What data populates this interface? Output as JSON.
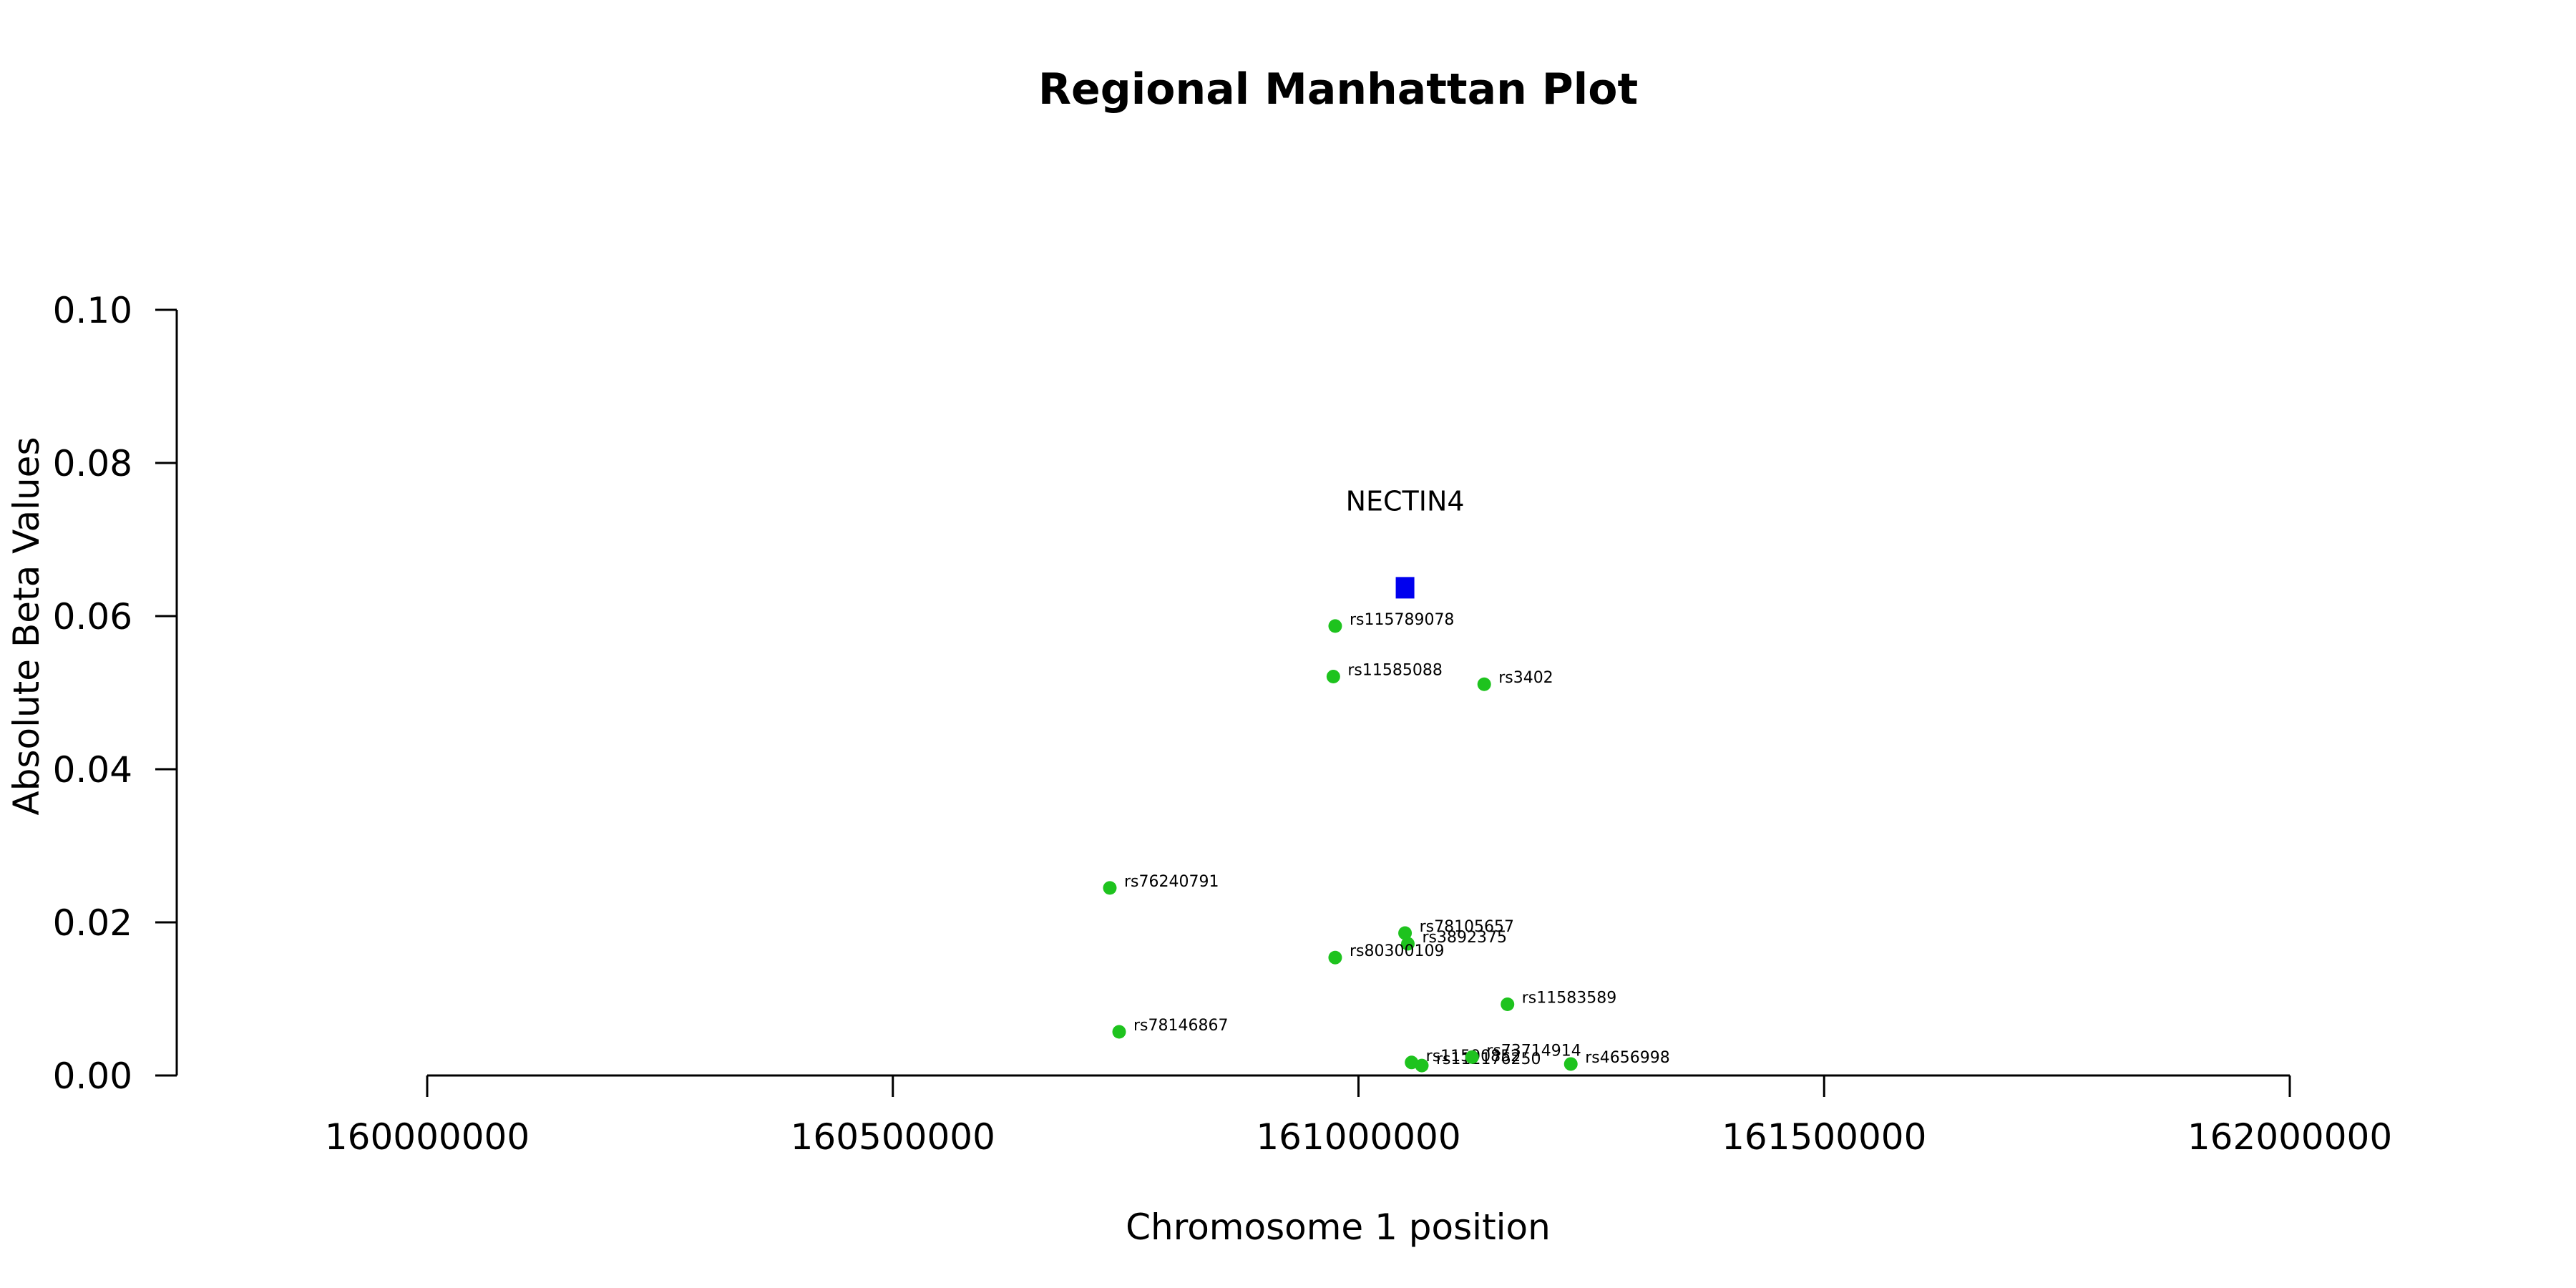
{
  "chart_data": {
    "type": "scatter",
    "title": "Regional Manhattan Plot",
    "xlabel": "Chromosome 1 position",
    "ylabel": "Absolute Beta Values",
    "xlim": [
      160000000,
      162000000
    ],
    "ylim": [
      0,
      0.1
    ],
    "x_ticks": [
      160000000,
      160500000,
      161000000,
      161500000,
      162000000
    ],
    "y_ticks": [
      "0.00",
      "0.02",
      "0.04",
      "0.06",
      "0.08",
      "0.10"
    ],
    "grid": false,
    "series": [
      {
        "color": "#1ec31e",
        "marker": "circle",
        "points": [
          {
            "label": "rs115789078",
            "x": 160975000,
            "y": 0.0587
          },
          {
            "label": "rs11585088",
            "x": 160973000,
            "y": 0.0521
          },
          {
            "label": "rs3402",
            "x": 161135000,
            "y": 0.0511
          },
          {
            "label": "rs76240791",
            "x": 160733000,
            "y": 0.0245
          },
          {
            "label": "rs78105657",
            "x": 161050000,
            "y": 0.0186
          },
          {
            "label": "rs3892375",
            "x": 161053000,
            "y": 0.0172
          },
          {
            "label": "rs80300109",
            "x": 160975000,
            "y": 0.0154
          },
          {
            "label": "rs11583589",
            "x": 161160000,
            "y": 0.0093
          },
          {
            "label": "rs78146867",
            "x": 160743000,
            "y": 0.0057
          },
          {
            "label": "rs11590852",
            "x": 161057000,
            "y": 0.0017
          },
          {
            "label": "rs112176250",
            "x": 161068000,
            "y": 0.0013
          },
          {
            "label": "rs73714914",
            "x": 161122000,
            "y": 0.0024
          },
          {
            "label": "rs4656998",
            "x": 161228000,
            "y": 0.0015
          }
        ]
      },
      {
        "color": "#0000ee",
        "marker": "square",
        "points": [
          {
            "label": "NECTIN4",
            "x": 161050000,
            "y": 0.0637
          }
        ]
      }
    ]
  }
}
